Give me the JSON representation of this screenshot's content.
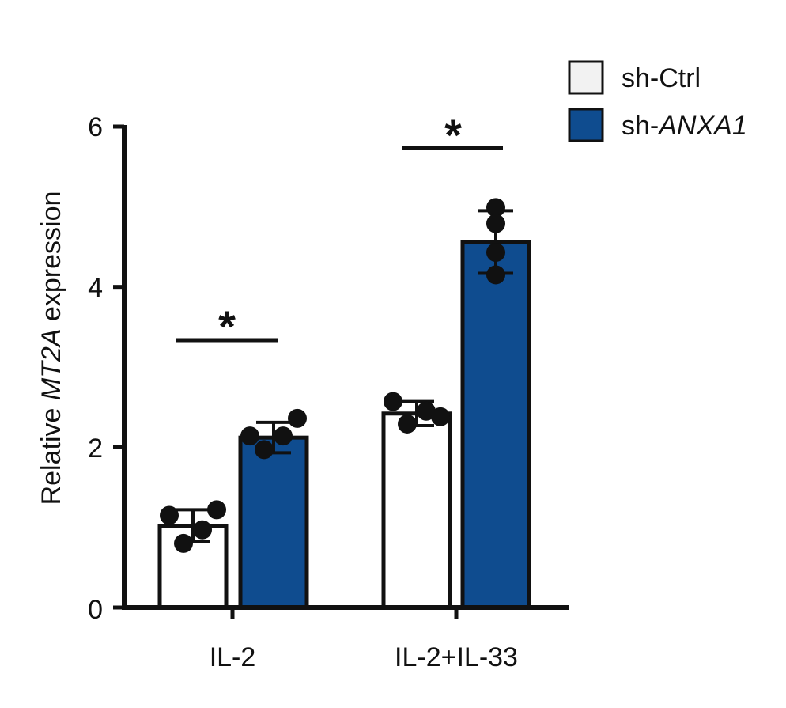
{
  "chart_data": {
    "type": "bar",
    "ylabel_parts": [
      "Relative ",
      "MT2A",
      " expression"
    ],
    "xlabel": "",
    "title": "",
    "ylim": [
      0,
      6
    ],
    "yticks": [
      0,
      2,
      4,
      6
    ],
    "ytick_labels": [
      "0",
      "2",
      "4",
      "6"
    ],
    "categories": [
      "IL-2",
      "IL-2+IL-33"
    ],
    "series": [
      {
        "name": "sh-Ctrl",
        "color": "#ffffff",
        "values": [
          1.02,
          2.42
        ],
        "errors": [
          0.2,
          0.15
        ],
        "points": [
          [
            1.15,
            0.8,
            0.97,
            1.22
          ],
          [
            2.57,
            2.29,
            2.45,
            2.38
          ]
        ]
      },
      {
        "name": "sh-ANXA1",
        "color": "#0f4c8f",
        "values": [
          2.12,
          4.56
        ],
        "errors": [
          0.19,
          0.39
        ],
        "points": [
          [
            2.14,
            1.97,
            2.14,
            2.36
          ],
          [
            4.99,
            4.79,
            4.43,
            4.15
          ]
        ]
      }
    ],
    "significance": [
      {
        "category": "IL-2",
        "label": "*"
      },
      {
        "category": "IL-2+IL-33",
        "label": "*"
      }
    ],
    "legend": {
      "position": "top-right",
      "items": [
        {
          "prefix": "sh-",
          "name": "Ctrl",
          "italic": false,
          "color": "#f2f2f2"
        },
        {
          "prefix": "sh-",
          "name": "ANXA1",
          "italic": true,
          "color": "#0f4c8f"
        }
      ]
    }
  }
}
